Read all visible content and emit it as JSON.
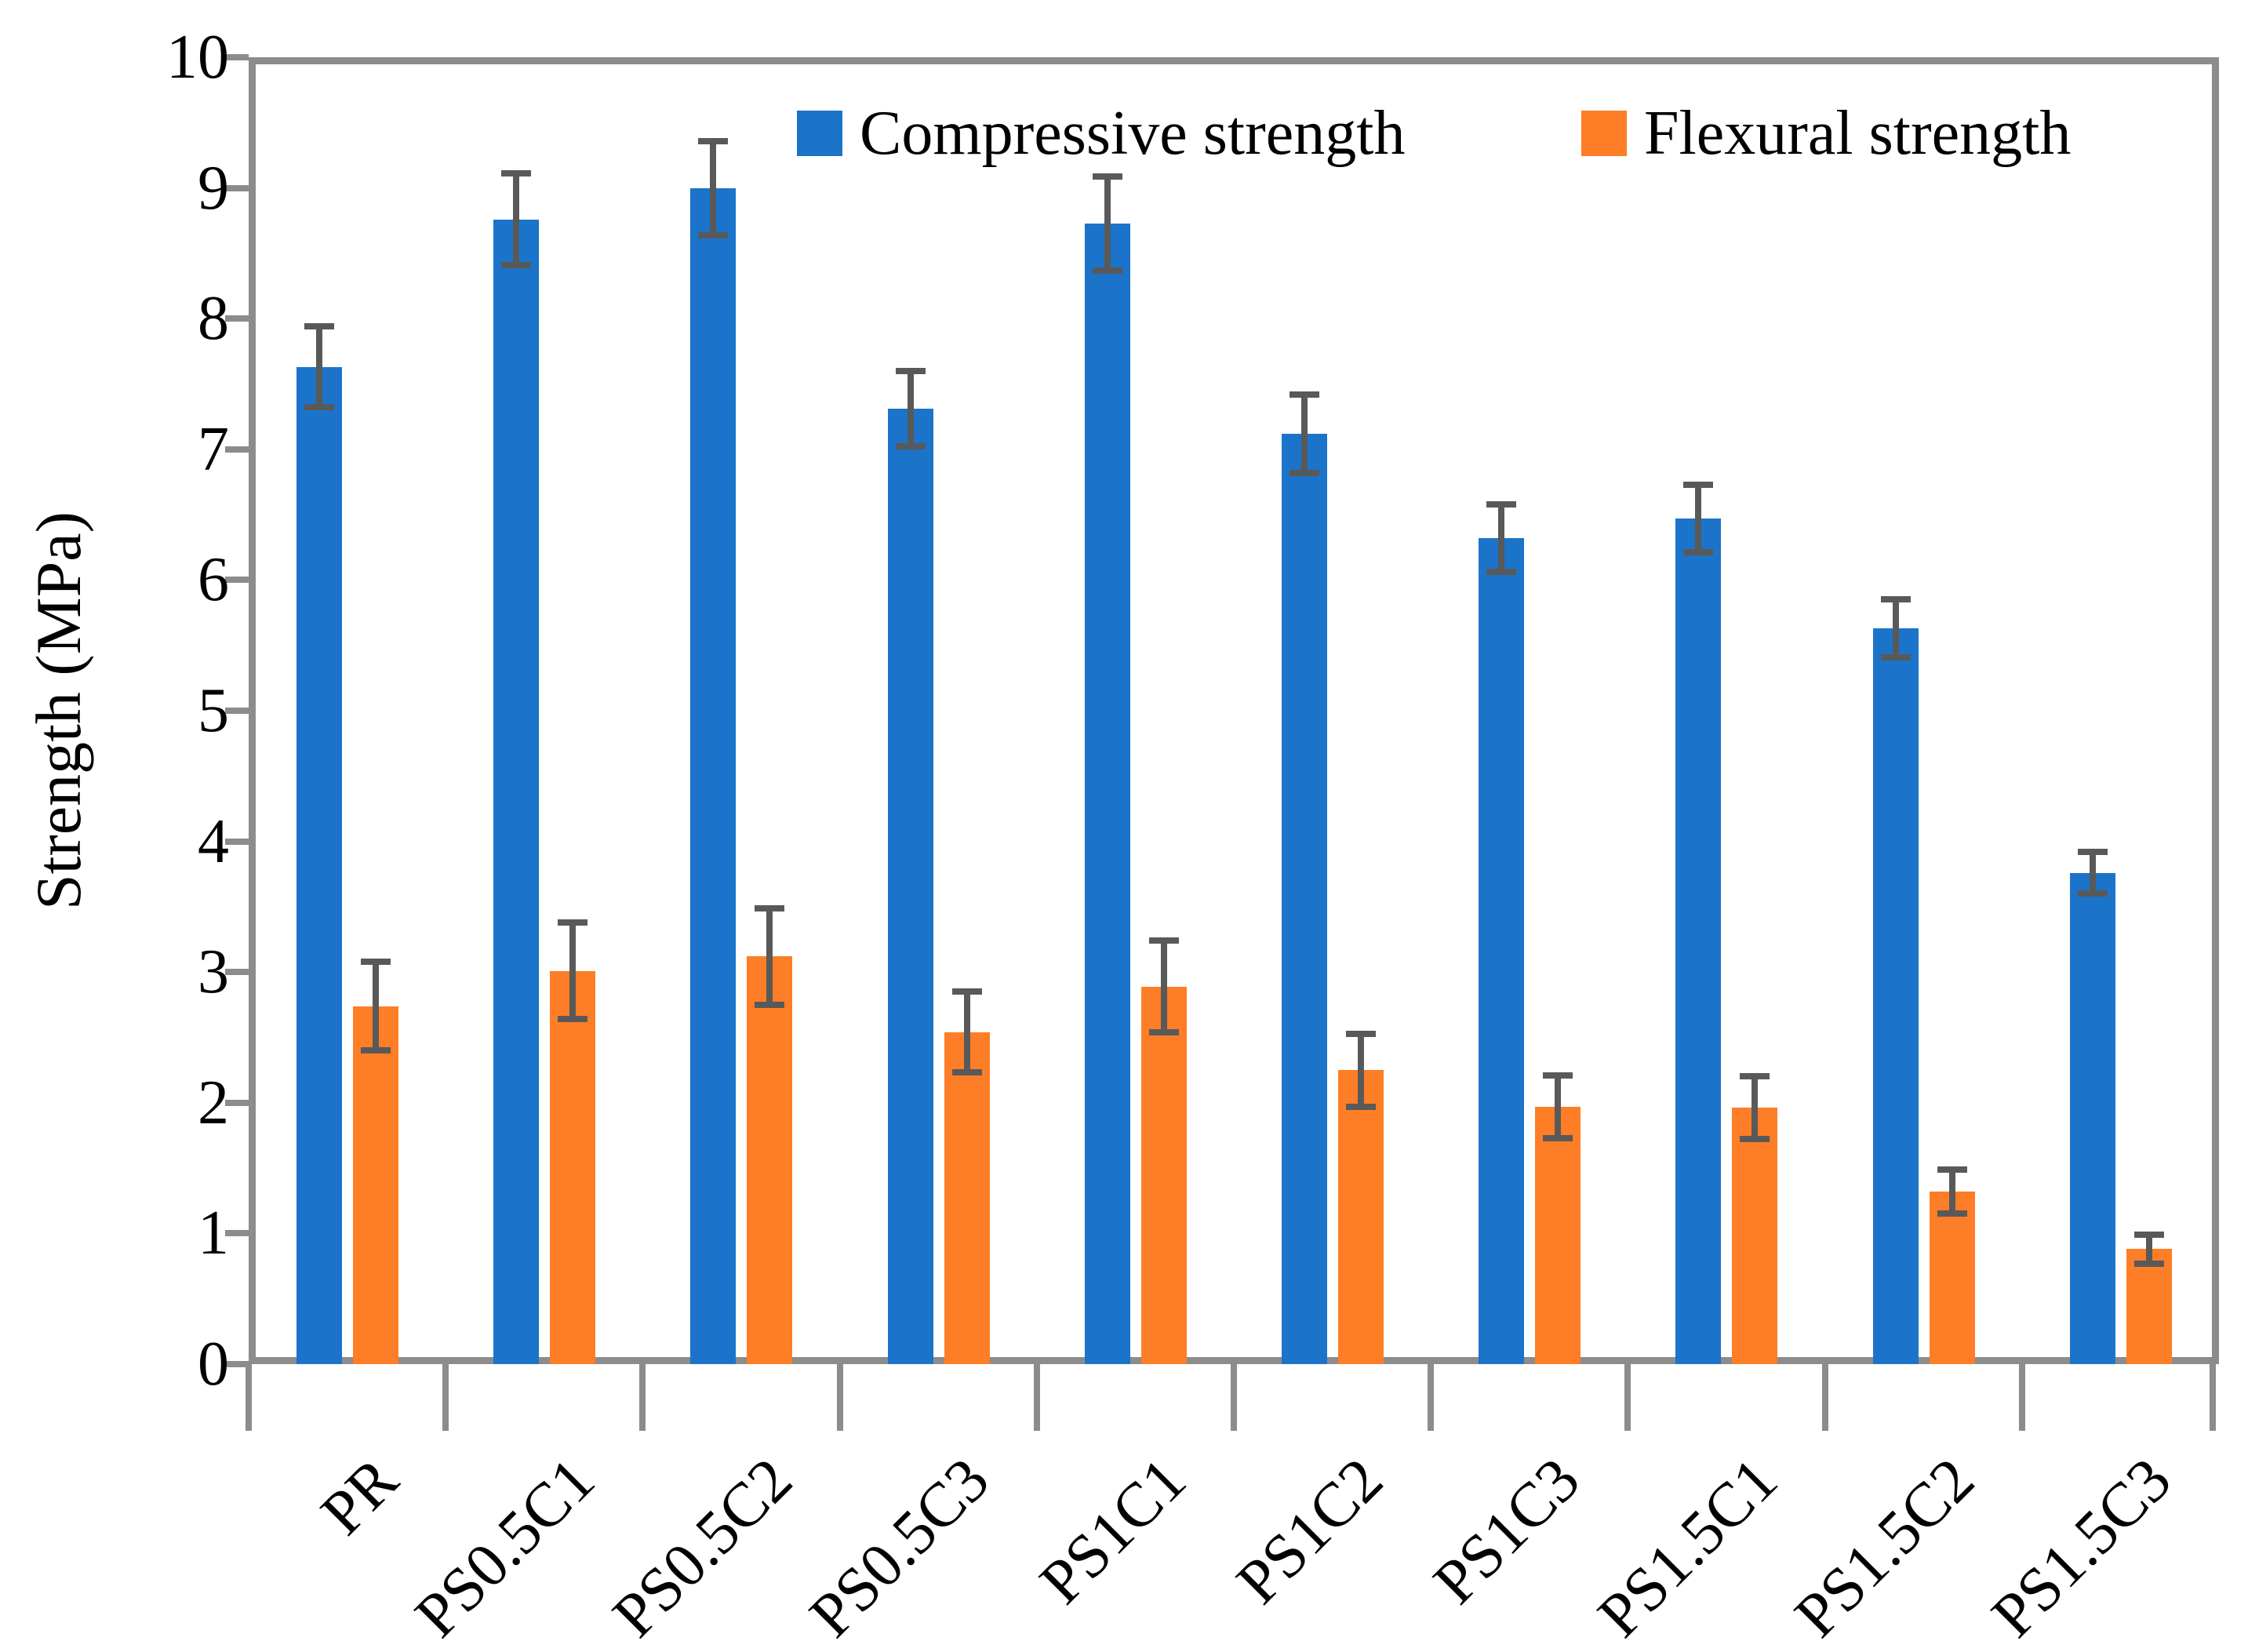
{
  "chart_data": {
    "type": "bar",
    "title": "",
    "xlabel": "",
    "ylabel": "Strength (MPa)",
    "ylim": [
      0,
      10
    ],
    "yticks": [
      0,
      1,
      2,
      3,
      4,
      5,
      6,
      7,
      8,
      9,
      10
    ],
    "grid": false,
    "legend_position": "top-center-inside",
    "categories": [
      "PR",
      "PS0.5C1",
      "PS0.5C2",
      "PS0.5C3",
      "PS1C1",
      "PS1C2",
      "PS1C3",
      "PS1.5C1",
      "PS1.5C2",
      "PS1.5C3"
    ],
    "series": [
      {
        "name": "Compressive strength",
        "color": "#1B74C9",
        "values": [
          7.63,
          8.76,
          9.0,
          7.31,
          8.73,
          7.12,
          6.32,
          6.47,
          5.63,
          3.76
        ],
        "errors": [
          0.31,
          0.35,
          0.36,
          0.29,
          0.36,
          0.3,
          0.26,
          0.26,
          0.22,
          0.16
        ]
      },
      {
        "name": "Flexural strength",
        "color": "#FD7E26",
        "values": [
          2.74,
          3.01,
          3.12,
          2.54,
          2.89,
          2.25,
          1.97,
          1.96,
          1.32,
          0.88
        ],
        "errors": [
          0.34,
          0.37,
          0.37,
          0.31,
          0.35,
          0.28,
          0.24,
          0.24,
          0.17,
          0.11
        ]
      }
    ],
    "axis_color": "#8C8C8C",
    "error_bar_color": "#595959",
    "background": "#FFFFFF"
  }
}
